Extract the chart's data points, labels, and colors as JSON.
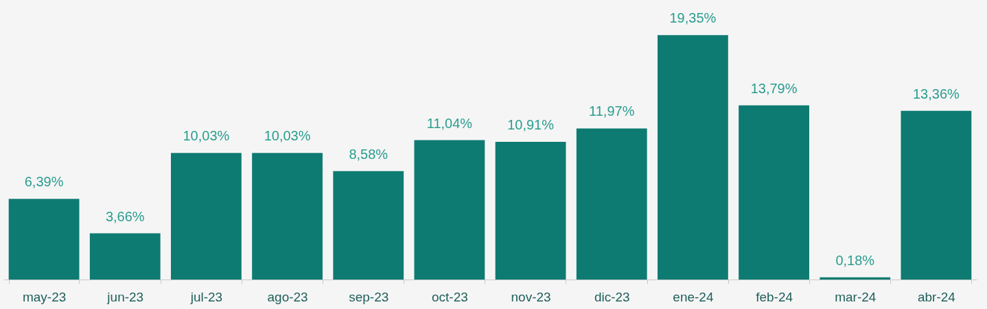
{
  "chart_data": {
    "type": "bar",
    "categories": [
      "may-23",
      "jun-23",
      "jul-23",
      "ago-23",
      "sep-23",
      "oct-23",
      "nov-23",
      "dic-23",
      "ene-24",
      "feb-24",
      "mar-24",
      "abr-24"
    ],
    "values": [
      6.39,
      3.66,
      10.03,
      10.03,
      8.58,
      11.04,
      10.91,
      11.97,
      19.35,
      13.79,
      0.18,
      13.36
    ],
    "value_labels": [
      "6,39%",
      "3,66%",
      "10,03%",
      "10,03%",
      "8,58%",
      "11,04%",
      "10,91%",
      "11,97%",
      "19,35%",
      "13,79%",
      "0,18%",
      "13,36%"
    ],
    "color": "#0e7b72",
    "grid": false,
    "tick_labels": "x"
  }
}
